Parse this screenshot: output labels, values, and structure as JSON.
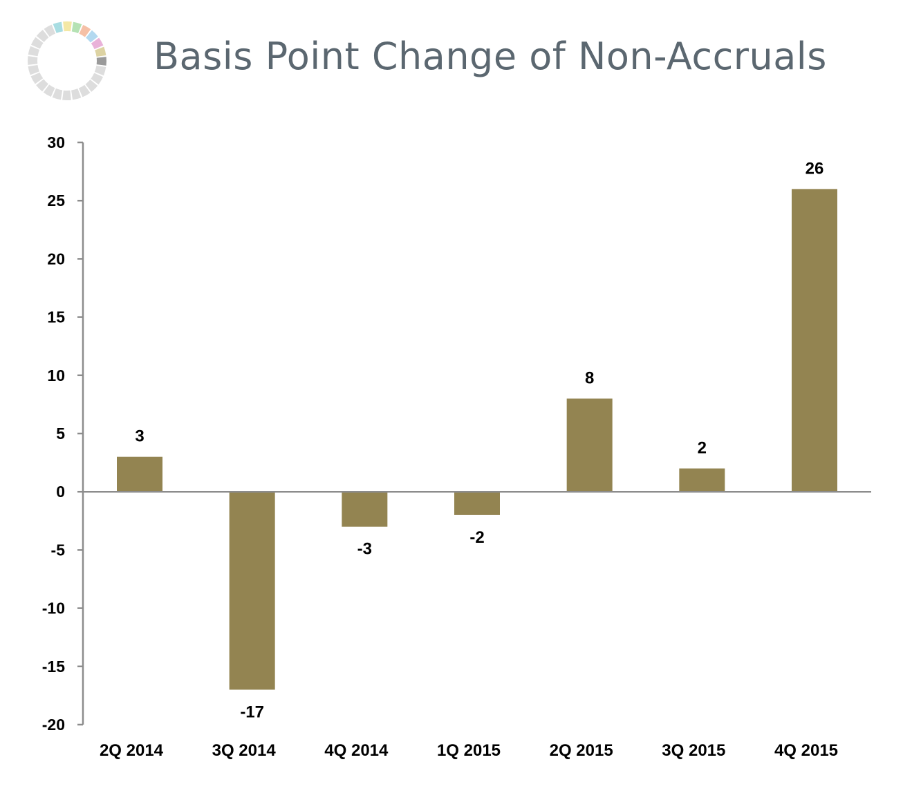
{
  "page": {
    "title": "Basis Point Change of Non-Accruals"
  },
  "logo": {
    "icon": "segmented-ring-logo-icon",
    "segment_colors": [
      "#a8dde2",
      "#f4e8a5",
      "#b5e2b4",
      "#f5c0a6",
      "#b3d9f0",
      "#e9b2d9",
      "#ddd3a3",
      "#9a9a9a"
    ],
    "inactive_color": "#dddddd"
  },
  "chart_data": {
    "type": "bar",
    "categories": [
      "2Q 2014",
      "3Q 2014",
      "4Q 2014",
      "1Q 2015",
      "2Q 2015",
      "3Q 2015",
      "4Q 2015"
    ],
    "values": [
      3,
      -17,
      -3,
      -2,
      8,
      2,
      26
    ],
    "data_labels": [
      "3",
      "-17",
      "-3",
      "-2",
      "8",
      "2",
      "26"
    ],
    "title": "Basis Point Change of Non-Accruals",
    "xlabel": "",
    "ylabel": "",
    "ylim": [
      -20,
      30
    ],
    "yticks": [
      30,
      25,
      20,
      15,
      10,
      5,
      0,
      -5,
      -10,
      -15,
      -20
    ],
    "grid": false,
    "legend": "none",
    "bar_color": "#938451",
    "axis_color": "#8c8c8c"
  }
}
